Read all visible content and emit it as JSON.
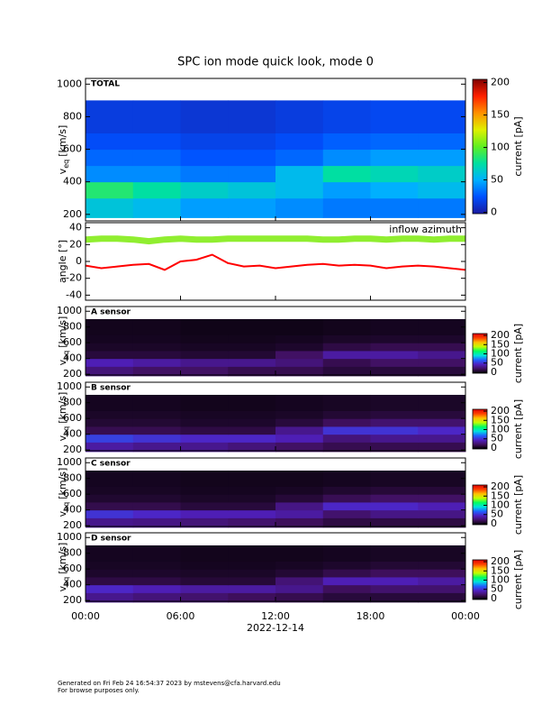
{
  "title": "SPC ion mode quick look, mode 0",
  "time_axis": {
    "xlim": [
      0,
      24
    ],
    "xticks": [
      {
        "value": 0,
        "label": "00:00"
      },
      {
        "value": 6,
        "label": "06:00"
      },
      {
        "value": 12,
        "label": "12:00"
      },
      {
        "value": 18,
        "label": "18:00"
      },
      {
        "value": 24,
        "label": "00:00"
      }
    ],
    "xlabel": "2022-12-14"
  },
  "footer": [
    "Generated on Fri Feb 24 16:54:37 2023 by mstevens@cfa.harvard.edu",
    "For browse purposes only."
  ],
  "chart_data": [
    {
      "type": "heatmap",
      "label": "TOTAL",
      "ylabel": "v",
      "ylabel_sub": "eq",
      "ylabel_unit": "[km/s]",
      "ylim": [
        160,
        1035
      ],
      "yticks": [
        200,
        400,
        600,
        800,
        1000
      ],
      "x": [
        0,
        3,
        6,
        9,
        12,
        15,
        18,
        21,
        24
      ],
      "y": [
        180,
        300,
        400,
        500,
        600,
        700,
        900
      ],
      "z": [
        [
          60,
          55,
          45,
          45,
          40,
          35,
          35,
          35
        ],
        [
          85,
          75,
          65,
          60,
          55,
          45,
          50,
          55
        ],
        [
          40,
          40,
          35,
          35,
          55,
          75,
          70,
          65
        ],
        [
          30,
          30,
          25,
          25,
          30,
          40,
          45,
          45
        ],
        [
          22,
          22,
          18,
          18,
          22,
          28,
          30,
          30
        ],
        [
          15,
          15,
          12,
          12,
          15,
          18,
          20,
          20
        ]
      ],
      "colorbar": {
        "label": "current [pA]",
        "lim": [
          -2,
          205
        ],
        "ticks": [
          0,
          50,
          100,
          150,
          200
        ],
        "colors": [
          "#1a1aa0",
          "#0050ff",
          "#00b0ff",
          "#00e0a0",
          "#60f020",
          "#e0f000",
          "#ff9000",
          "#ff2000",
          "#800000"
        ]
      }
    },
    {
      "type": "line",
      "ylabel": "angle [°]",
      "ylim": [
        -46,
        46
      ],
      "yticks": [
        -40,
        -20,
        0,
        20,
        40
      ],
      "x": [
        0,
        1,
        2,
        3,
        4,
        5,
        6,
        7,
        8,
        9,
        10,
        11,
        12,
        13,
        14,
        15,
        16,
        17,
        18,
        19,
        20,
        21,
        22,
        23,
        24
      ],
      "series": [
        {
          "color": "#90ee30",
          "values": [
            26,
            27,
            27,
            26,
            24,
            26,
            27,
            26,
            26,
            27,
            27,
            27,
            27,
            27,
            27,
            26,
            26,
            27,
            27,
            26,
            27,
            27,
            26,
            27,
            27
          ]
        },
        {
          "name": "inflow azimuth",
          "color": "#ff0000",
          "values": [
            -5,
            -8,
            -6,
            -4,
            -3,
            -10,
            0,
            2,
            8,
            -2,
            -6,
            -5,
            -8,
            -6,
            -4,
            -3,
            -5,
            -4,
            -5,
            -8,
            -6,
            -5,
            -6,
            -8,
            -10
          ]
        }
      ]
    },
    {
      "type": "heatmap",
      "label": "A sensor",
      "ylabel": "v",
      "ylabel_sub": "eq",
      "ylabel_unit": "[km/s]",
      "ylim": [
        190,
        1060
      ],
      "yticks": [
        200,
        400,
        600,
        800,
        1000
      ],
      "x": [
        0,
        3,
        6,
        9,
        12,
        15,
        18,
        21,
        24
      ],
      "y": [
        180,
        300,
        400,
        500,
        600,
        700,
        900
      ],
      "z": [
        [
          25,
          20,
          20,
          15,
          15,
          10,
          10,
          10
        ],
        [
          40,
          35,
          30,
          30,
          25,
          15,
          20,
          20
        ],
        [
          10,
          10,
          8,
          8,
          20,
          35,
          35,
          30
        ],
        [
          5,
          5,
          4,
          4,
          6,
          12,
          15,
          15
        ],
        [
          3,
          3,
          2,
          2,
          3,
          5,
          6,
          6
        ],
        [
          2,
          2,
          1,
          1,
          1,
          2,
          3,
          3
        ]
      ],
      "colorbar": {
        "label": "current [pA]",
        "lim": [
          -5,
          210
        ],
        "ticks": [
          0,
          50,
          100,
          150,
          200
        ],
        "colors": [
          "#000000",
          "#401060",
          "#5020c0",
          "#2060ff",
          "#00e0e0",
          "#00ff60",
          "#c0ff00",
          "#ffc000",
          "#ff4000",
          "#e00000"
        ]
      }
    },
    {
      "type": "heatmap",
      "label": "B sensor",
      "ylabel": "v",
      "ylabel_sub": "eq",
      "ylabel_unit": "[km/s]",
      "ylim": [
        190,
        1060
      ],
      "yticks": [
        200,
        400,
        600,
        800,
        1000
      ],
      "x": [
        0,
        3,
        6,
        9,
        12,
        15,
        18,
        21,
        24
      ],
      "y": [
        180,
        300,
        400,
        500,
        600,
        700,
        900
      ],
      "z": [
        [
          35,
          30,
          30,
          25,
          20,
          15,
          15,
          15
        ],
        [
          55,
          50,
          45,
          45,
          40,
          25,
          30,
          30
        ],
        [
          15,
          15,
          12,
          12,
          30,
          50,
          50,
          45
        ],
        [
          8,
          8,
          6,
          6,
          10,
          18,
          22,
          22
        ],
        [
          5,
          5,
          4,
          4,
          5,
          8,
          10,
          10
        ],
        [
          3,
          3,
          2,
          2,
          3,
          4,
          5,
          5
        ]
      ],
      "colorbar": {
        "label": "current [pA]",
        "lim": [
          -5,
          210
        ],
        "ticks": [
          0,
          50,
          100,
          150,
          200
        ],
        "colors": [
          "#000000",
          "#401060",
          "#5020c0",
          "#2060ff",
          "#00e0e0",
          "#00ff60",
          "#c0ff00",
          "#ffc000",
          "#ff4000",
          "#e00000"
        ]
      }
    },
    {
      "type": "heatmap",
      "label": "C sensor",
      "ylabel": "v",
      "ylabel_sub": "eq",
      "ylabel_unit": "[km/s]",
      "ylim": [
        190,
        1060
      ],
      "yticks": [
        200,
        400,
        600,
        800,
        1000
      ],
      "x": [
        0,
        3,
        6,
        9,
        12,
        15,
        18,
        21,
        24
      ],
      "y": [
        180,
        300,
        400,
        500,
        600,
        700,
        900
      ],
      "z": [
        [
          30,
          28,
          25,
          22,
          18,
          12,
          12,
          12
        ],
        [
          50,
          45,
          40,
          40,
          35,
          22,
          28,
          28
        ],
        [
          14,
          14,
          10,
          10,
          28,
          45,
          45,
          40
        ],
        [
          7,
          7,
          5,
          5,
          9,
          16,
          20,
          20
        ],
        [
          4,
          4,
          3,
          3,
          4,
          7,
          9,
          9
        ],
        [
          3,
          3,
          2,
          2,
          2,
          3,
          4,
          4
        ]
      ],
      "colorbar": {
        "label": "current [pA]",
        "lim": [
          -5,
          210
        ],
        "ticks": [
          0,
          50,
          100,
          150,
          200
        ],
        "colors": [
          "#000000",
          "#401060",
          "#5020c0",
          "#2060ff",
          "#00e0e0",
          "#00ff60",
          "#c0ff00",
          "#ffc000",
          "#ff4000",
          "#e00000"
        ]
      }
    },
    {
      "type": "heatmap",
      "label": "D sensor",
      "ylabel": "v",
      "ylabel_sub": "eq",
      "ylabel_unit": "[km/s]",
      "ylim": [
        190,
        1060
      ],
      "yticks": [
        200,
        400,
        600,
        800,
        1000
      ],
      "x": [
        0,
        3,
        6,
        9,
        12,
        15,
        18,
        21,
        24
      ],
      "y": [
        180,
        300,
        400,
        500,
        600,
        700,
        900
      ],
      "z": [
        [
          30,
          25,
          22,
          18,
          15,
          10,
          10,
          10
        ],
        [
          45,
          40,
          35,
          35,
          30,
          18,
          22,
          22
        ],
        [
          12,
          12,
          9,
          9,
          24,
          40,
          40,
          35
        ],
        [
          6,
          6,
          5,
          5,
          8,
          14,
          18,
          18
        ],
        [
          4,
          4,
          3,
          3,
          4,
          6,
          8,
          8
        ],
        [
          3,
          3,
          2,
          2,
          2,
          3,
          4,
          4
        ]
      ],
      "colorbar": {
        "label": "current [pA]",
        "lim": [
          -5,
          210
        ],
        "ticks": [
          0,
          50,
          100,
          150,
          200
        ],
        "colors": [
          "#000000",
          "#401060",
          "#5020c0",
          "#2060ff",
          "#00e0e0",
          "#00ff60",
          "#c0ff00",
          "#ffc000",
          "#ff4000",
          "#e00000"
        ]
      }
    }
  ]
}
